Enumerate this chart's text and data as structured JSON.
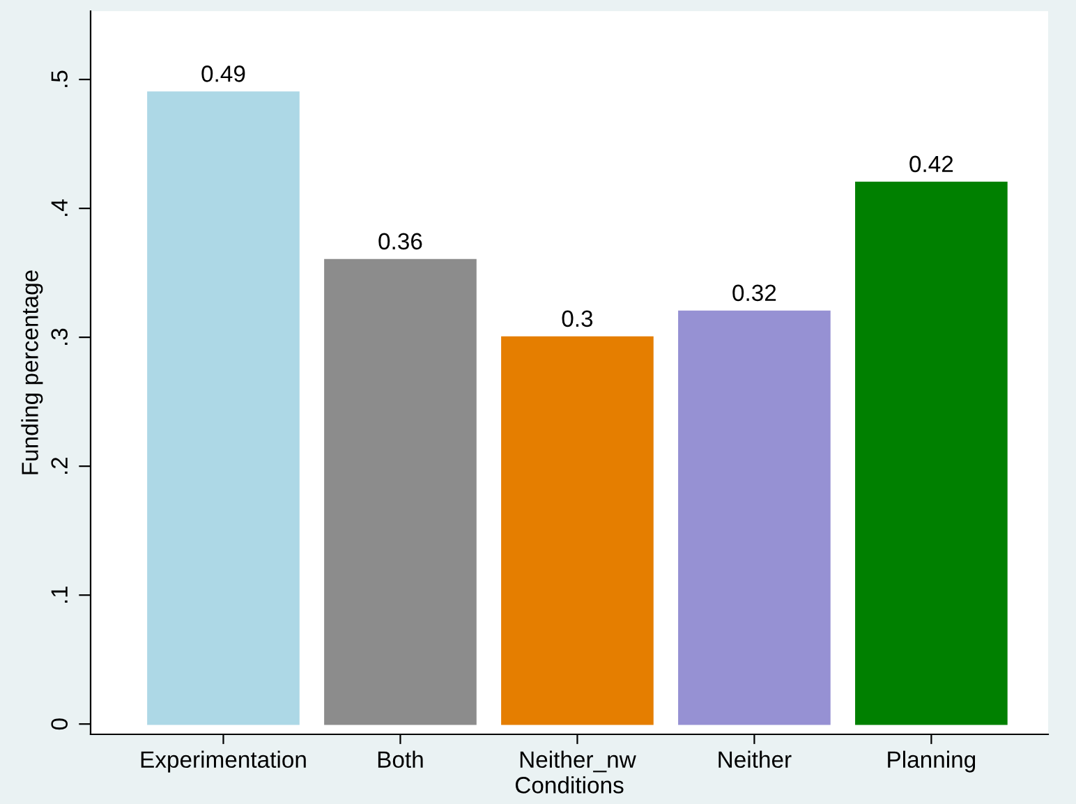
{
  "chart_data": {
    "type": "bar",
    "xlabel": "Conditions",
    "ylabel": "Funding percentage",
    "categories": [
      "Experimentation",
      "Both",
      "Neither_nw",
      "Neither",
      "Planning"
    ],
    "values": [
      0.49,
      0.36,
      0.3,
      0.32,
      0.42
    ],
    "colors": [
      "#add8e6",
      "#8c8c8c",
      "#e57e00",
      "#9691d3",
      "#008000"
    ],
    "ylim": [
      -0.008,
      0.553
    ],
    "yticks": [
      0,
      {
        "value": 0.1,
        "label": ".1"
      },
      {
        "value": 0.2,
        "label": ".2"
      },
      {
        "value": 0.3,
        "label": ".3"
      },
      {
        "value": 0.4,
        "label": ".4"
      },
      {
        "value": 0.5,
        "label": ".5"
      }
    ],
    "data_labels": true,
    "grid": false,
    "legend": false
  }
}
